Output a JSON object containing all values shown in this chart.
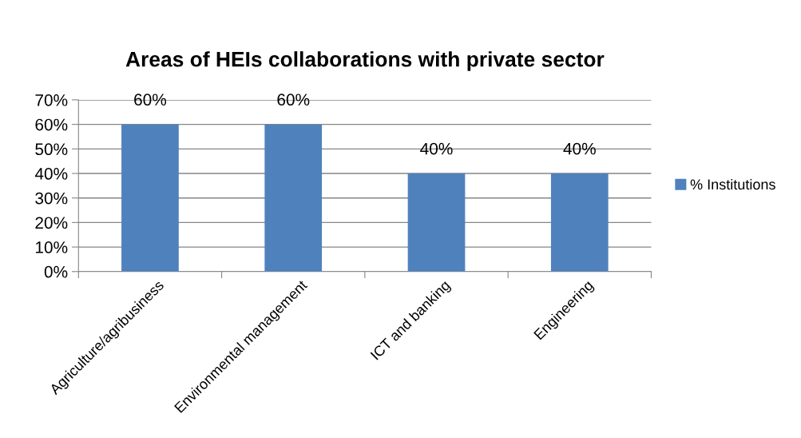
{
  "chart_data": {
    "type": "bar",
    "title": "Areas of HEIs collaborations with private sector",
    "categories": [
      "Agriculture/agribusiness",
      "Environmental management",
      "ICT and banking",
      "Engineering"
    ],
    "series": [
      {
        "name": "% Institutions",
        "color": "#4f81bd",
        "values": [
          60,
          60,
          40,
          40
        ],
        "value_labels": [
          "60%",
          "60%",
          "40%",
          "40%"
        ]
      }
    ],
    "ylim": [
      0,
      70
    ],
    "yticks": [
      {
        "value": 0,
        "label": "0%"
      },
      {
        "value": 10,
        "label": "10%"
      },
      {
        "value": 20,
        "label": "20%"
      },
      {
        "value": 30,
        "label": "30%"
      },
      {
        "value": 40,
        "label": "40%"
      },
      {
        "value": 50,
        "label": "50%"
      },
      {
        "value": 60,
        "label": "60%"
      },
      {
        "value": 70,
        "label": "70%"
      }
    ],
    "grid": "y",
    "legend": "right"
  }
}
